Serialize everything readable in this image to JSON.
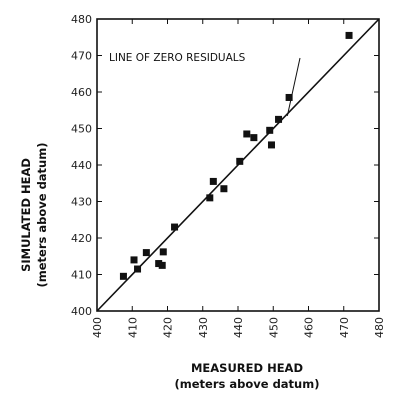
{
  "chart_data": {
    "type": "scatter",
    "title": "",
    "xlabel": "MEASURED HEAD",
    "xlabel_sub": "(meters above datum)",
    "ylabel": "SIMULATED HEAD",
    "ylabel_sub": "(meters above datum)",
    "xlim": [
      400,
      480
    ],
    "ylim": [
      400,
      480
    ],
    "xticks": [
      400,
      410,
      420,
      430,
      440,
      450,
      460,
      470,
      480
    ],
    "yticks": [
      400,
      410,
      420,
      430,
      440,
      450,
      460,
      470,
      480
    ],
    "grid": false,
    "annotation": "LINE OF ZERO RESIDUALS",
    "reference_line": {
      "from": [
        400,
        400
      ],
      "to": [
        480,
        480
      ]
    },
    "series": [
      {
        "points": [
          {
            "x": 407.5,
            "y": 409.5
          },
          {
            "x": 410.5,
            "y": 414.0
          },
          {
            "x": 411.5,
            "y": 411.5
          },
          {
            "x": 414.0,
            "y": 416.0
          },
          {
            "x": 417.5,
            "y": 413.0
          },
          {
            "x": 418.5,
            "y": 412.5
          },
          {
            "x": 418.8,
            "y": 416.2
          },
          {
            "x": 422.0,
            "y": 423.0
          },
          {
            "x": 432.0,
            "y": 431.0
          },
          {
            "x": 433.0,
            "y": 435.5
          },
          {
            "x": 436.0,
            "y": 433.5
          },
          {
            "x": 440.5,
            "y": 441.0
          },
          {
            "x": 442.5,
            "y": 448.5
          },
          {
            "x": 444.5,
            "y": 447.5
          },
          {
            "x": 449.0,
            "y": 449.5
          },
          {
            "x": 449.5,
            "y": 445.5
          },
          {
            "x": 451.5,
            "y": 452.5
          },
          {
            "x": 454.5,
            "y": 458.5
          },
          {
            "x": 471.5,
            "y": 475.5
          }
        ]
      }
    ]
  }
}
